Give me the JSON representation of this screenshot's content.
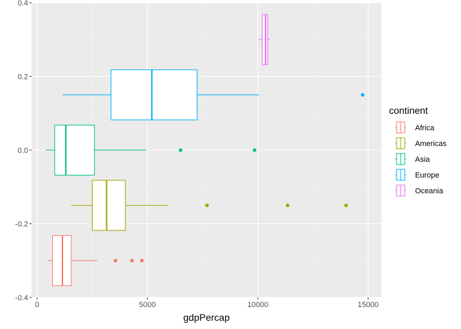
{
  "chart_data": {
    "type": "boxplot",
    "orientation": "horizontal",
    "xlabel": "gdpPercap",
    "ylabel": "",
    "xlim": [
      -250,
      15600
    ],
    "ylim": [
      -0.4,
      0.4
    ],
    "x_ticks": [
      0,
      5000,
      10000,
      15000
    ],
    "x_tick_labels": [
      "0",
      "5000",
      "10000",
      "15000"
    ],
    "y_ticks": [
      0.4,
      0.2,
      0.0,
      -0.2,
      -0.4
    ],
    "y_tick_labels": [
      "0.4",
      "0.2",
      "0.0",
      "-0.2",
      "-0.4"
    ],
    "grid": true,
    "legend": {
      "title": "continent",
      "position": "right",
      "entries": [
        "Africa",
        "Americas",
        "Asia",
        "Europe",
        "Oceania"
      ]
    },
    "series": [
      {
        "name": "Africa",
        "color": "#F8766D",
        "y_center": -0.3,
        "y_half_height": 0.068,
        "whisker_low": 500,
        "q1": 700,
        "median": 1150,
        "q3": 1550,
        "whisker_high": 2750,
        "outliers": [
          3550,
          4300,
          4750
        ]
      },
      {
        "name": "Americas",
        "color": "#A3A500",
        "y_center": -0.15,
        "y_half_height": 0.068,
        "whisker_low": 1550,
        "q1": 2500,
        "median": 3150,
        "q3": 4000,
        "whisker_high": 5950,
        "outliers": [
          7700,
          11350,
          14000
        ]
      },
      {
        "name": "Asia",
        "color": "#00BF7D",
        "y_center": 0.0,
        "y_half_height": 0.068,
        "whisker_low": 400,
        "q1": 800,
        "median": 1300,
        "q3": 2600,
        "whisker_high": 4950,
        "outliers": [
          6500,
          9850
        ]
      },
      {
        "name": "Europe",
        "color": "#00B0F6",
        "y_center": 0.15,
        "y_half_height": 0.068,
        "whisker_low": 1150,
        "q1": 3350,
        "median": 5200,
        "q3": 7250,
        "whisker_high": 10050,
        "outliers": [
          14750
        ]
      },
      {
        "name": "Oceania",
        "color": "#E76BF3",
        "y_center": 0.3,
        "y_half_height": 0.068,
        "whisker_low": 10050,
        "q1": 10200,
        "median": 10350,
        "q3": 10450,
        "whisker_high": 10550,
        "outliers": []
      }
    ]
  }
}
